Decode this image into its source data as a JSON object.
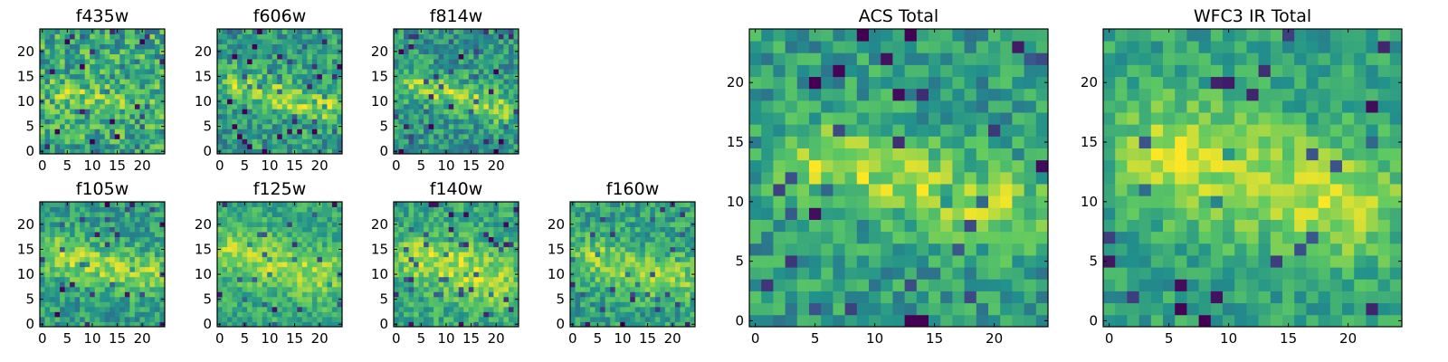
{
  "chart_data": [
    {
      "id": "f435w",
      "type": "heatmap",
      "title": "f435w",
      "xlim": [
        -0.5,
        24.5
      ],
      "ylim": [
        -0.5,
        24.5
      ],
      "xticks": [
        0,
        5,
        10,
        15,
        20
      ],
      "yticks": [
        0,
        5,
        10,
        15,
        20
      ],
      "colormap": "viridis",
      "seed": 11,
      "band": {
        "path": [
          [
            4,
            12
          ],
          [
            10,
            11
          ],
          [
            16,
            9.5
          ],
          [
            22,
            8.5
          ]
        ],
        "width": 2.0,
        "amp": 0.14
      },
      "noise": 0.5,
      "base": 0.6
    },
    {
      "id": "f606w",
      "type": "heatmap",
      "title": "f606w",
      "xlim": [
        -0.5,
        24.5
      ],
      "ylim": [
        -0.5,
        24.5
      ],
      "xticks": [
        0,
        5,
        10,
        15,
        20
      ],
      "yticks": [
        0,
        5,
        10,
        15,
        20
      ],
      "colormap": "viridis",
      "seed": 23,
      "band": {
        "path": [
          [
            4,
            13
          ],
          [
            9,
            12
          ],
          [
            15,
            10
          ],
          [
            22,
            8.5
          ]
        ],
        "width": 2.2,
        "amp": 0.28
      },
      "noise": 0.42,
      "base": 0.55
    },
    {
      "id": "f814w",
      "type": "heatmap",
      "title": "f814w",
      "xlim": [
        -0.5,
        24.5
      ],
      "ylim": [
        -0.5,
        24.5
      ],
      "xticks": [
        0,
        5,
        10,
        15,
        20
      ],
      "yticks": [
        0,
        5,
        10,
        15,
        20
      ],
      "colormap": "viridis",
      "seed": 37,
      "band": {
        "path": [
          [
            4,
            13
          ],
          [
            9,
            12
          ],
          [
            15,
            10.5
          ],
          [
            21,
            8.5
          ]
        ],
        "width": 2.2,
        "amp": 0.3
      },
      "noise": 0.4,
      "base": 0.52
    },
    {
      "id": "f105w",
      "type": "heatmap",
      "title": "f105w",
      "xlim": [
        -0.5,
        24.5
      ],
      "ylim": [
        -0.5,
        24.5
      ],
      "xticks": [
        0,
        5,
        10,
        15,
        20
      ],
      "yticks": [
        0,
        5,
        10,
        15,
        20
      ],
      "colormap": "viridis",
      "seed": 41,
      "band": {
        "path": [
          [
            3,
            14
          ],
          [
            8,
            12.5
          ],
          [
            14,
            11
          ],
          [
            21,
            10
          ]
        ],
        "width": 3.0,
        "amp": 0.28
      },
      "noise": 0.35,
      "base": 0.55
    },
    {
      "id": "f125w",
      "type": "heatmap",
      "title": "f125w",
      "xlim": [
        -0.5,
        24.5
      ],
      "ylim": [
        -0.5,
        24.5
      ],
      "xticks": [
        0,
        5,
        10,
        15,
        20
      ],
      "yticks": [
        0,
        5,
        10,
        15,
        20
      ],
      "colormap": "viridis",
      "seed": 53,
      "band": {
        "path": [
          [
            3,
            15
          ],
          [
            8,
            13
          ],
          [
            14,
            11
          ],
          [
            21,
            10
          ]
        ],
        "width": 3.5,
        "amp": 0.25
      },
      "noise": 0.3,
      "base": 0.6
    },
    {
      "id": "f140w",
      "type": "heatmap",
      "title": "f140w",
      "xlim": [
        -0.5,
        24.5
      ],
      "ylim": [
        -0.5,
        24.5
      ],
      "xticks": [
        0,
        5,
        10,
        15,
        20
      ],
      "yticks": [
        0,
        5,
        10,
        15,
        20
      ],
      "colormap": "viridis",
      "seed": 67,
      "band": {
        "path": [
          [
            5,
            13
          ],
          [
            10,
            12
          ],
          [
            16,
            10
          ],
          [
            20,
            8
          ]
        ],
        "width": 3.5,
        "amp": 0.28
      },
      "noise": 0.33,
      "base": 0.6
    },
    {
      "id": "f160w",
      "type": "heatmap",
      "title": "f160w",
      "xlim": [
        -0.5,
        24.5
      ],
      "ylim": [
        -0.5,
        24.5
      ],
      "xticks": [
        0,
        5,
        10,
        15,
        20
      ],
      "yticks": [
        0,
        5,
        10,
        15,
        20
      ],
      "colormap": "viridis",
      "seed": 79,
      "band": {
        "path": [
          [
            4,
            13
          ],
          [
            9,
            12
          ],
          [
            15,
            10
          ],
          [
            21,
            9
          ]
        ],
        "width": 3.0,
        "amp": 0.25
      },
      "noise": 0.36,
      "base": 0.57
    },
    {
      "id": "acs-total",
      "type": "heatmap",
      "title": "ACS Total",
      "xlim": [
        -0.5,
        24.5
      ],
      "ylim": [
        -0.5,
        24.5
      ],
      "xticks": [
        0,
        5,
        10,
        15,
        20
      ],
      "yticks": [
        0,
        5,
        10,
        15,
        20
      ],
      "colormap": "viridis",
      "seed": 97,
      "band": {
        "path": [
          [
            5,
            13.5
          ],
          [
            9,
            12.5
          ],
          [
            15,
            11
          ],
          [
            21,
            9.5
          ]
        ],
        "width": 2.2,
        "amp": 0.32
      },
      "noise": 0.36,
      "base": 0.55
    },
    {
      "id": "wfc3-ir-total",
      "type": "heatmap",
      "title": "WFC3 IR Total",
      "xlim": [
        -0.5,
        24.5
      ],
      "ylim": [
        -0.5,
        24.5
      ],
      "xticks": [
        0,
        5,
        10,
        15,
        20
      ],
      "yticks": [
        0,
        5,
        10,
        15,
        20
      ],
      "colormap": "viridis",
      "seed": 113,
      "band": {
        "path": [
          [
            5,
            14
          ],
          [
            9,
            13
          ],
          [
            15,
            11
          ],
          [
            20,
            10
          ]
        ],
        "width": 3.5,
        "amp": 0.32
      },
      "noise": 0.28,
      "base": 0.57
    }
  ],
  "colors": {
    "viridis": [
      "#440154",
      "#3b528b",
      "#21918c",
      "#5ec962",
      "#fde725"
    ],
    "background": "#ffffff",
    "frame": "#000000"
  }
}
